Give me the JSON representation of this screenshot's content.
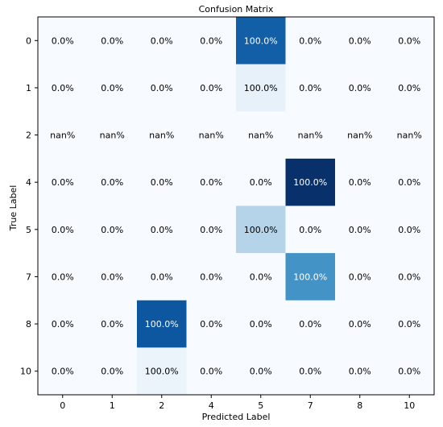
{
  "chart_data": {
    "type": "heatmap",
    "title": "Confusion Matrix",
    "xlabel": "Predicted Label",
    "ylabel": "True Label",
    "x_labels": [
      "0",
      "1",
      "2",
      "4",
      "5",
      "7",
      "8",
      "10"
    ],
    "y_labels": [
      "0",
      "1",
      "2",
      "4",
      "5",
      "7",
      "8",
      "10"
    ],
    "cells": [
      [
        "0.0%",
        "0.0%",
        "0.0%",
        "0.0%",
        "100.0%",
        "0.0%",
        "0.0%",
        "0.0%"
      ],
      [
        "0.0%",
        "0.0%",
        "0.0%",
        "0.0%",
        "100.0%",
        "0.0%",
        "0.0%",
        "0.0%"
      ],
      [
        "nan%",
        "nan%",
        "nan%",
        "nan%",
        "nan%",
        "nan%",
        "nan%",
        "nan%"
      ],
      [
        "0.0%",
        "0.0%",
        "0.0%",
        "0.0%",
        "0.0%",
        "100.0%",
        "0.0%",
        "0.0%"
      ],
      [
        "0.0%",
        "0.0%",
        "0.0%",
        "0.0%",
        "100.0%",
        "0.0%",
        "0.0%",
        "0.0%"
      ],
      [
        "0.0%",
        "0.0%",
        "0.0%",
        "0.0%",
        "0.0%",
        "100.0%",
        "0.0%",
        "0.0%"
      ],
      [
        "0.0%",
        "0.0%",
        "100.0%",
        "0.0%",
        "0.0%",
        "0.0%",
        "0.0%",
        "0.0%"
      ],
      [
        "0.0%",
        "0.0%",
        "100.0%",
        "0.0%",
        "0.0%",
        "0.0%",
        "0.0%",
        "0.0%"
      ]
    ],
    "intensity": [
      [
        0,
        0,
        0,
        0,
        0.82,
        0,
        0,
        0
      ],
      [
        0,
        0,
        0,
        0,
        0.08,
        0,
        0,
        0
      ],
      [
        0,
        0,
        0,
        0,
        0,
        0,
        0,
        0
      ],
      [
        0,
        0,
        0,
        0,
        0,
        1.0,
        0,
        0
      ],
      [
        0,
        0,
        0,
        0,
        0.3,
        0,
        0,
        0
      ],
      [
        0,
        0,
        0,
        0,
        0,
        0.62,
        0,
        0
      ],
      [
        0,
        0,
        0.85,
        0,
        0,
        0,
        0,
        0
      ],
      [
        0,
        0,
        0.06,
        0,
        0,
        0,
        0,
        0
      ]
    ],
    "colormap": "Blues",
    "grid": false,
    "colors": {
      "low": "#f7fbff",
      "high": "#08306b",
      "text_dark": "#000000",
      "text_light": "#ffffff"
    }
  }
}
